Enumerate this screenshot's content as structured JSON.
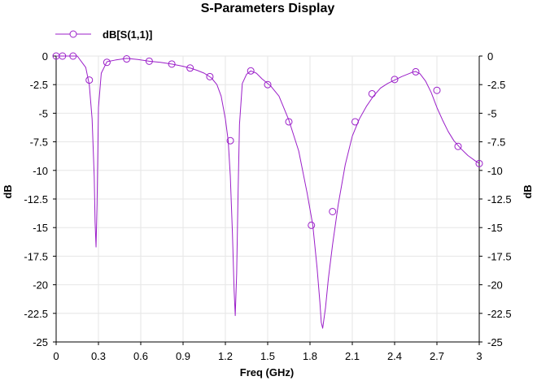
{
  "chart_data": {
    "type": "line",
    "title": "S-Parameters Display",
    "xlabel": "Freq (GHz)",
    "ylabel": "dB",
    "ylabel_right": "dB",
    "xlim": [
      0,
      3
    ],
    "ylim": [
      -25,
      0
    ],
    "x_ticks": [
      "0",
      "0.3",
      "0.6",
      "0.9",
      "1.2",
      "1.5",
      "1.8",
      "2.1",
      "2.4",
      "2.7",
      "3"
    ],
    "y_ticks": [
      "0",
      "-2.5",
      "-5",
      "-7.5",
      "-10",
      "-12.5",
      "-15",
      "-17.5",
      "-20",
      "-22.5",
      "-25"
    ],
    "grid": true,
    "legend": "top-left",
    "colors": {
      "series": "#9B1FC9",
      "grid": "#e6e6e6",
      "axis": "#000000"
    },
    "series": [
      {
        "name": "dB[S(1,1)]",
        "marker": "circle",
        "x": [
          0,
          0.03,
          0.06,
          0.1,
          0.15,
          0.18,
          0.21,
          0.235,
          0.255,
          0.27,
          0.276,
          0.283,
          0.29,
          0.3,
          0.32,
          0.36,
          0.42,
          0.5,
          0.58,
          0.66,
          0.74,
          0.82,
          0.9,
          0.95,
          1.0,
          1.05,
          1.1,
          1.14,
          1.17,
          1.2,
          1.22,
          1.235,
          1.25,
          1.262,
          1.27,
          1.28,
          1.29,
          1.3,
          1.32,
          1.35,
          1.38,
          1.42,
          1.46,
          1.52,
          1.58,
          1.65,
          1.72,
          1.78,
          1.82,
          1.85,
          1.87,
          1.88,
          1.89,
          1.91,
          1.93,
          1.96,
          2.0,
          2.05,
          2.1,
          2.15,
          2.2,
          2.25,
          2.3,
          2.35,
          2.4,
          2.45,
          2.5,
          2.53,
          2.55,
          2.58,
          2.62,
          2.66,
          2.7,
          2.74,
          2.78,
          2.82,
          2.87,
          2.92,
          2.97,
          3.0
        ],
        "y": [
          0,
          0,
          0,
          0,
          0,
          -0.5,
          -1.0,
          -2.5,
          -5.5,
          -10.5,
          -14.5,
          -16.7,
          -13.0,
          -4.5,
          -1.5,
          -0.5,
          -0.35,
          -0.2,
          -0.3,
          -0.45,
          -0.55,
          -0.7,
          -0.9,
          -1.05,
          -1.25,
          -1.5,
          -1.9,
          -2.5,
          -3.5,
          -5.5,
          -7.4,
          -10.5,
          -15.5,
          -20.5,
          -22.7,
          -19.0,
          -12.0,
          -6.0,
          -2.4,
          -1.6,
          -1.3,
          -1.5,
          -2.0,
          -2.6,
          -3.5,
          -5.6,
          -8.3,
          -12.0,
          -14.8,
          -18.5,
          -21.5,
          -23.3,
          -23.8,
          -22.0,
          -19.5,
          -16.5,
          -13.0,
          -9.5,
          -7.0,
          -5.5,
          -4.4,
          -3.5,
          -2.8,
          -2.4,
          -2.1,
          -1.8,
          -1.55,
          -1.4,
          -1.35,
          -1.55,
          -2.2,
          -3.2,
          -4.5,
          -5.6,
          -6.6,
          -7.4,
          -8.1,
          -8.7,
          -9.15,
          -9.4
        ],
        "markers_x": [
          0,
          0.045,
          0.12,
          0.235,
          0.36,
          0.5,
          0.66,
          0.82,
          0.95,
          1.09,
          1.235,
          1.38,
          1.5,
          1.65,
          1.81,
          1.96,
          2.12,
          2.24,
          2.4,
          2.55,
          2.7,
          2.85,
          3.0
        ],
        "markers_y": [
          0,
          0,
          0,
          -2.1,
          -0.55,
          -0.25,
          -0.45,
          -0.7,
          -1.05,
          -1.8,
          -7.4,
          -1.3,
          -2.5,
          -5.75,
          -14.8,
          -13.6,
          -5.75,
          -3.3,
          -2.05,
          -1.38,
          -3.0,
          -7.9,
          -9.4
        ]
      }
    ]
  }
}
